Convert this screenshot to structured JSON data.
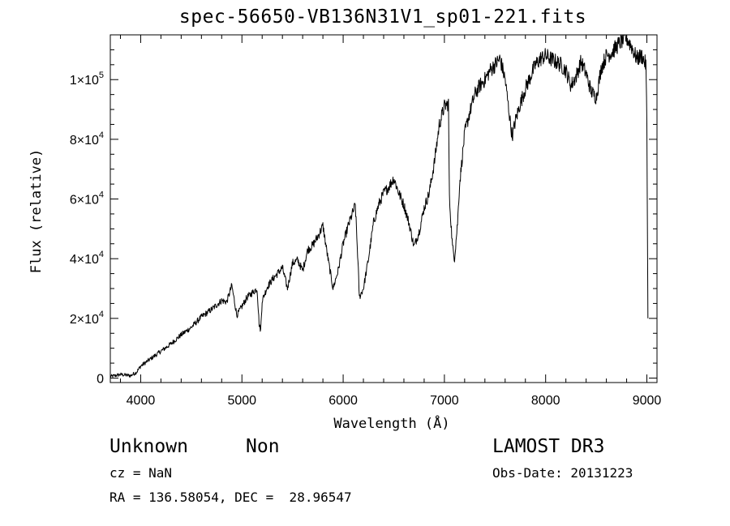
{
  "chart_data": {
    "type": "line",
    "title": "spec-56650-VB136N31V1_sp01-221.fits",
    "xlabel": "Wavelength (Å)",
    "ylabel": "Flux (relative)",
    "xlim": [
      3700,
      9100
    ],
    "ylim": [
      -1500,
      115000
    ],
    "x_ticks": [
      4000,
      5000,
      6000,
      7000,
      8000,
      9000
    ],
    "x_tick_labels": [
      "4000",
      "5000",
      "6000",
      "7000",
      "8000",
      "9000"
    ],
    "y_ticks": [
      0,
      20000,
      40000,
      60000,
      80000,
      100000
    ],
    "y_tick_labels": [
      {
        "base": "0",
        "exp": ""
      },
      {
        "base": "2×10",
        "exp": "4"
      },
      {
        "base": "4×10",
        "exp": "4"
      },
      {
        "base": "6×10",
        "exp": "4"
      },
      {
        "base": "8×10",
        "exp": "4"
      },
      {
        "base": "1×10",
        "exp": "5"
      }
    ],
    "series": [
      {
        "name": "spectrum",
        "color": "#000000",
        "x": [
          3700,
          3800,
          3900,
          3960,
          4000,
          4100,
          4200,
          4300,
          4400,
          4500,
          4600,
          4700,
          4800,
          4850,
          4900,
          4950,
          5000,
          5050,
          5100,
          5150,
          5170,
          5185,
          5200,
          5250,
          5300,
          5350,
          5400,
          5450,
          5500,
          5550,
          5600,
          5650,
          5700,
          5750,
          5800,
          5850,
          5900,
          5950,
          6000,
          6050,
          6100,
          6120,
          6150,
          6160,
          6200,
          6250,
          6300,
          6350,
          6400,
          6450,
          6500,
          6550,
          6600,
          6650,
          6700,
          6750,
          6800,
          6850,
          6900,
          6950,
          7000,
          7040,
          7050,
          7080,
          7100,
          7130,
          7150,
          7200,
          7250,
          7300,
          7350,
          7400,
          7450,
          7500,
          7550,
          7600,
          7650,
          7670,
          7700,
          7750,
          7800,
          7850,
          7900,
          7950,
          8000,
          8050,
          8100,
          8150,
          8200,
          8250,
          8300,
          8350,
          8400,
          8450,
          8500,
          8550,
          8600,
          8650,
          8700,
          8750,
          8800,
          8850,
          8900,
          8950,
          8990,
          9000,
          9010
        ],
        "y": [
          500,
          1200,
          800,
          2000,
          4000,
          6500,
          9000,
          11500,
          14500,
          17000,
          20500,
          23000,
          26000,
          25500,
          31000,
          21000,
          24000,
          27000,
          28500,
          30000,
          18000,
          16000,
          26000,
          30500,
          33000,
          35000,
          37000,
          30000,
          38500,
          39500,
          36000,
          43000,
          44500,
          47500,
          51000,
          40000,
          30000,
          36000,
          45000,
          51000,
          56000,
          58000,
          36000,
          27000,
          30000,
          40000,
          52000,
          58000,
          62000,
          64000,
          67000,
          62000,
          58000,
          52000,
          44000,
          49000,
          57000,
          62000,
          72000,
          85000,
          91000,
          92000,
          60000,
          44000,
          40000,
          52000,
          65000,
          82000,
          89000,
          95000,
          98000,
          100000,
          103000,
          105000,
          107000,
          100000,
          86000,
          81000,
          86000,
          92000,
          97000,
          101000,
          105000,
          107000,
          108000,
          107000,
          106000,
          105000,
          103000,
          98000,
          101000,
          106000,
          102000,
          96000,
          94000,
          104000,
          108000,
          109000,
          111000,
          113000,
          114000,
          111000,
          107000,
          108000,
          105000,
          86000,
          20000
        ]
      }
    ]
  },
  "footer": {
    "object_class": "Unknown",
    "object_subclass": "Non",
    "cz_label": "cz = NaN",
    "coords_label": "RA = 136.58054, DEC =  28.96547",
    "survey": "LAMOST DR3",
    "obs_date_label": "Obs-Date: 20131223"
  }
}
